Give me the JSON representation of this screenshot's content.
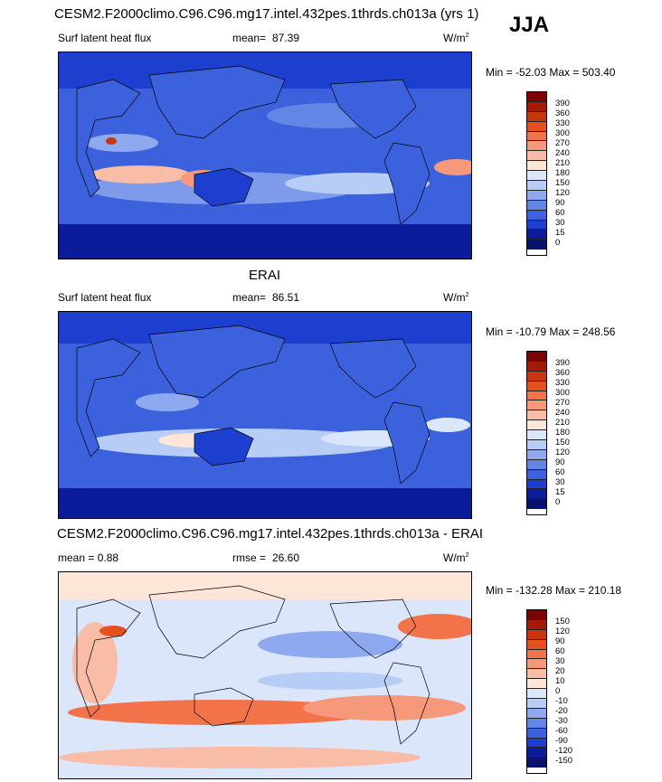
{
  "season": "JJA",
  "panels": [
    {
      "title": "CESM2.F2000climo.C96.C96.mg17.intel.432pes.1thrds.ch013a (yrs 1)",
      "left_label": "Surf latent heat flux",
      "stat_label": "mean=",
      "stat_value": "87.39",
      "units": "W/m",
      "units_sup": "2",
      "minmax": "Min = -52.03 Max = 503.40",
      "levels": [
        "390",
        "360",
        "330",
        "300",
        "270",
        "240",
        "210",
        "180",
        "150",
        "120",
        "90",
        "60",
        "30",
        "15",
        "0"
      ]
    },
    {
      "title": "ERAI",
      "left_label": "Surf latent heat flux",
      "stat_label": "mean=",
      "stat_value": "86.51",
      "units": "W/m",
      "units_sup": "2",
      "minmax": "Min = -10.79 Max = 248.56",
      "levels": [
        "390",
        "360",
        "330",
        "300",
        "270",
        "240",
        "210",
        "180",
        "150",
        "120",
        "90",
        "60",
        "30",
        "15",
        "0"
      ]
    },
    {
      "title": "CESM2.F2000climo.C96.C96.mg17.intel.432pes.1thrds.ch013a - ERAI",
      "left_label": "mean =  0.88",
      "stat_label": "rmse =",
      "stat_value": "26.60",
      "units": "W/m",
      "units_sup": "2",
      "minmax": "Min = -132.28 Max = 210.18",
      "levels": [
        "150",
        "120",
        "90",
        "60",
        "30",
        "20",
        "10",
        "0",
        "-10",
        "-20",
        "-30",
        "-60",
        "-90",
        "-120",
        "-150"
      ]
    }
  ],
  "colors": {
    "abs_scale": [
      "#7f0000",
      "#a31a06",
      "#c8360f",
      "#e5501c",
      "#f2734a",
      "#f6987a",
      "#f9bca6",
      "#fde6d8",
      "#dbe6fb",
      "#b8cdf6",
      "#8ea9ef",
      "#6286e6",
      "#3b62dc",
      "#1d3fd0",
      "#0a1c9a"
    ],
    "diff_scale": [
      "#7f0000",
      "#a31a06",
      "#c8360f",
      "#e5501c",
      "#f2734a",
      "#f6987a",
      "#f9bca6",
      "#fde6d8",
      "#dbe6fb",
      "#b8cdf6",
      "#8ea9ef",
      "#6286e6",
      "#3b62dc",
      "#1d3fd0",
      "#0a1c9a",
      "#08136e"
    ]
  }
}
